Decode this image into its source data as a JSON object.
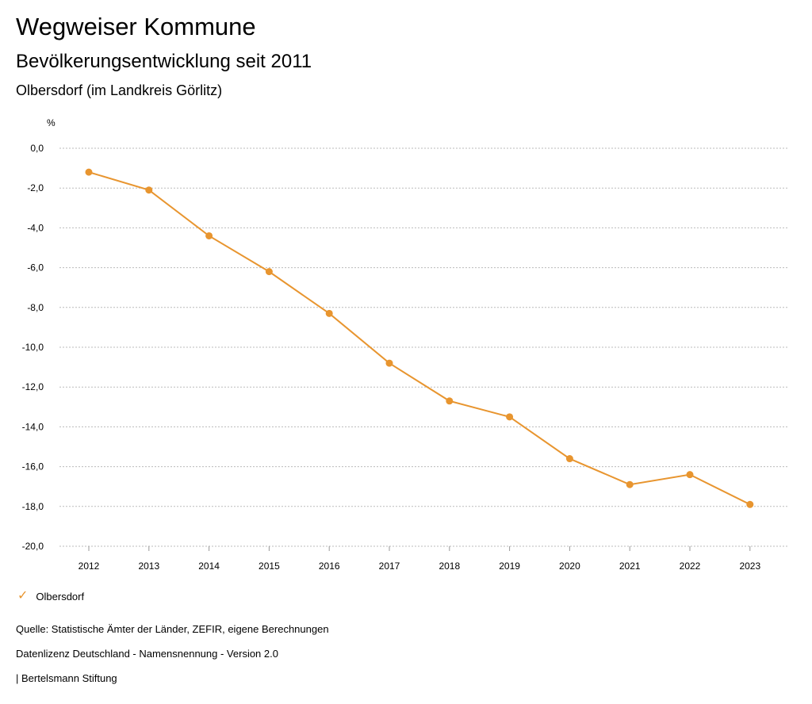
{
  "header": {
    "title": "Wegweiser Kommune",
    "subtitle": "Bevölkerungsentwicklung seit 2011",
    "region": "Olbersdorf (im Landkreis Görlitz)"
  },
  "legend": {
    "label": "Olbersdorf"
  },
  "footer": {
    "source": "Quelle: Statistische Ämter der Länder, ZEFIR, eigene Berechnungen",
    "license": "Datenlizenz Deutschland - Namensnennung - Version 2.0",
    "publisher": "| Bertelsmann Stiftung"
  },
  "colors": {
    "series": "#e8952f",
    "grid": "#bbbbbb"
  },
  "chart_data": {
    "type": "line",
    "ylabel": "%",
    "xlabel": "",
    "ylim": [
      -20,
      0
    ],
    "yticks": [
      "0,0",
      "-2,0",
      "-4,0",
      "-6,0",
      "-8,0",
      "-10,0",
      "-12,0",
      "-14,0",
      "-16,0",
      "-18,0",
      "-20,0"
    ],
    "ytick_values": [
      0,
      -2,
      -4,
      -6,
      -8,
      -10,
      -12,
      -14,
      -16,
      -18,
      -20
    ],
    "categories": [
      "2012",
      "2013",
      "2014",
      "2015",
      "2016",
      "2017",
      "2018",
      "2019",
      "2020",
      "2021",
      "2022",
      "2023"
    ],
    "series": [
      {
        "name": "Olbersdorf",
        "values": [
          -1.2,
          -2.1,
          -4.4,
          -6.2,
          -8.3,
          -10.8,
          -12.7,
          -13.5,
          -15.6,
          -16.9,
          -16.4,
          -17.9
        ]
      }
    ],
    "grid": true,
    "legend_position": "bottom-left"
  }
}
